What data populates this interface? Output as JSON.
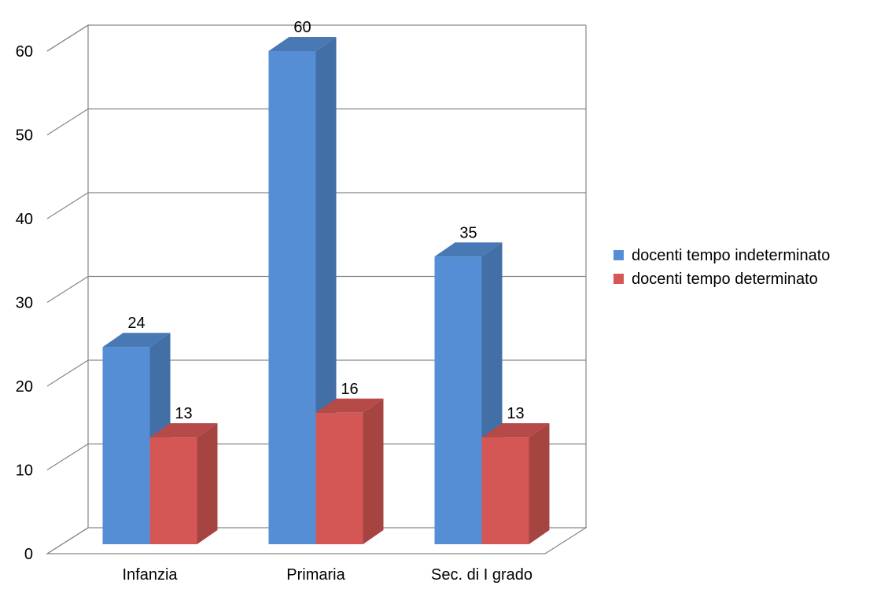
{
  "chart_data": {
    "type": "bar",
    "categories": [
      "Infanzia",
      "Primaria",
      "Sec. di I grado"
    ],
    "series": [
      {
        "name": "docenti tempo indeterminato",
        "values": [
          24,
          60,
          35
        ],
        "color": "#558ed5"
      },
      {
        "name": "docenti tempo determinato",
        "values": [
          13,
          16,
          13
        ],
        "color": "#d55755"
      }
    ],
    "ylim": [
      0,
      60
    ],
    "yticks": [
      0,
      10,
      20,
      30,
      40,
      50,
      60
    ],
    "grid": true,
    "legend": "right",
    "style": "3d-clustered-column",
    "title": "",
    "xlabel": "",
    "ylabel": ""
  }
}
